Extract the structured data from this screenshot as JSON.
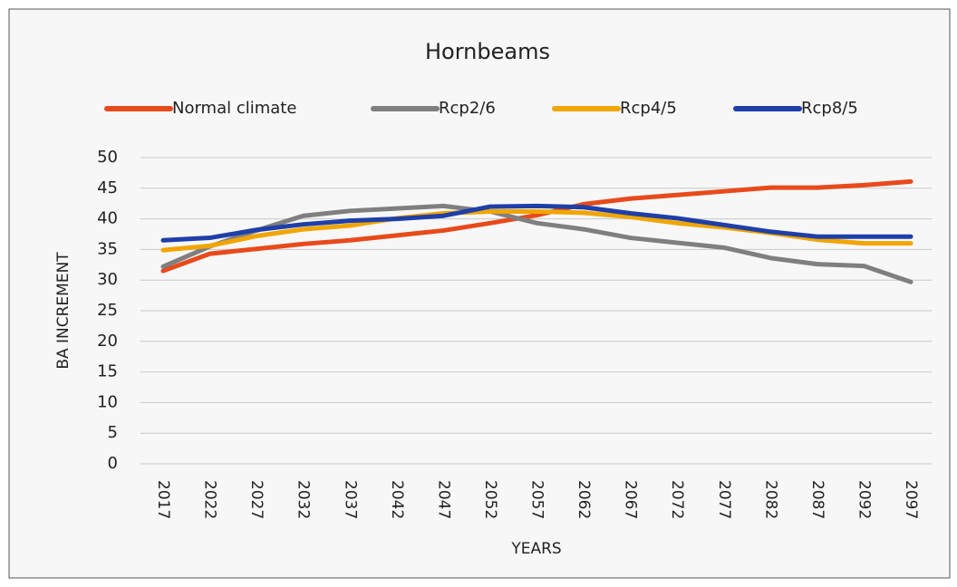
{
  "chart_data": {
    "type": "line",
    "title": "Hornbeams",
    "x_label": "YEARS",
    "y_label": "BA INCREMENT",
    "categories": [
      "2017",
      "2022",
      "2027",
      "2032",
      "2037",
      "2042",
      "2047",
      "2052",
      "2057",
      "2062",
      "2067",
      "2072",
      "2077",
      "2082",
      "2087",
      "2092",
      "2097"
    ],
    "series": [
      {
        "name": "Normal climate",
        "color": "#e84a1b",
        "values": [
          31.5,
          34.3,
          35.1,
          35.9,
          36.5,
          37.3,
          38.1,
          39.3,
          40.6,
          42.4,
          43.3,
          43.9,
          44.5,
          45.1,
          45.1,
          45.5,
          46.1
        ]
      },
      {
        "name": "Rcp2/6",
        "color": "#7f7f7f",
        "values": [
          32.2,
          35.5,
          38.1,
          40.5,
          41.3,
          41.7,
          42.1,
          41.2,
          39.3,
          38.3,
          36.9,
          36.1,
          35.3,
          33.6,
          32.6,
          32.3,
          29.7
        ]
      },
      {
        "name": "Rcp4/5",
        "color": "#f0a500",
        "values": [
          34.9,
          35.6,
          37.2,
          38.3,
          38.9,
          40.1,
          40.9,
          41.2,
          41.2,
          41.0,
          40.3,
          39.3,
          38.6,
          37.7,
          36.6,
          36.0,
          36.0
        ]
      },
      {
        "name": "Rcp8/5",
        "color": "#1f3fa8",
        "values": [
          36.5,
          36.9,
          38.2,
          39.1,
          39.7,
          40.0,
          40.5,
          42.0,
          42.1,
          41.9,
          40.9,
          40.1,
          39.0,
          37.9,
          37.1,
          37.1,
          37.1
        ]
      }
    ],
    "ylim": [
      0,
      50
    ],
    "yticks": [
      0,
      5,
      10,
      15,
      20,
      25,
      30,
      35,
      40,
      45,
      50
    ],
    "grid": true,
    "legend": "top"
  }
}
